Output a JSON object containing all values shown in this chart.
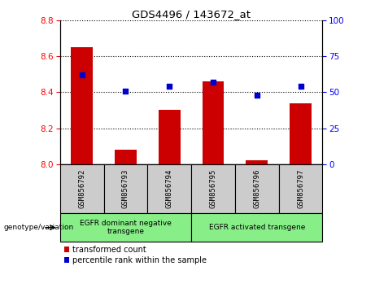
{
  "title": "GDS4496 / 143672_at",
  "samples": [
    "GSM856792",
    "GSM856793",
    "GSM856794",
    "GSM856795",
    "GSM856796",
    "GSM856797"
  ],
  "bar_values": [
    8.65,
    8.08,
    8.3,
    8.46,
    8.02,
    8.34
  ],
  "bar_baseline": 8.0,
  "dot_values_pct": [
    62,
    51,
    54,
    57,
    48,
    54
  ],
  "ylim_left": [
    8.0,
    8.8
  ],
  "ylim_right": [
    0,
    100
  ],
  "yticks_left": [
    8.0,
    8.2,
    8.4,
    8.6,
    8.8
  ],
  "yticks_right": [
    0,
    25,
    50,
    75,
    100
  ],
  "bar_color": "#cc0000",
  "dot_color": "#0000cc",
  "group1_label": "EGFR dominant negative\ntransgene",
  "group2_label": "EGFR activated transgene",
  "group1_indices": [
    0,
    1,
    2
  ],
  "group2_indices": [
    3,
    4,
    5
  ],
  "group_bg_color": "#88ee88",
  "xtick_bg_color": "#cccccc",
  "legend_bar_label": "transformed count",
  "legend_dot_label": "percentile rank within the sample",
  "genotype_label": "genotype/variation"
}
